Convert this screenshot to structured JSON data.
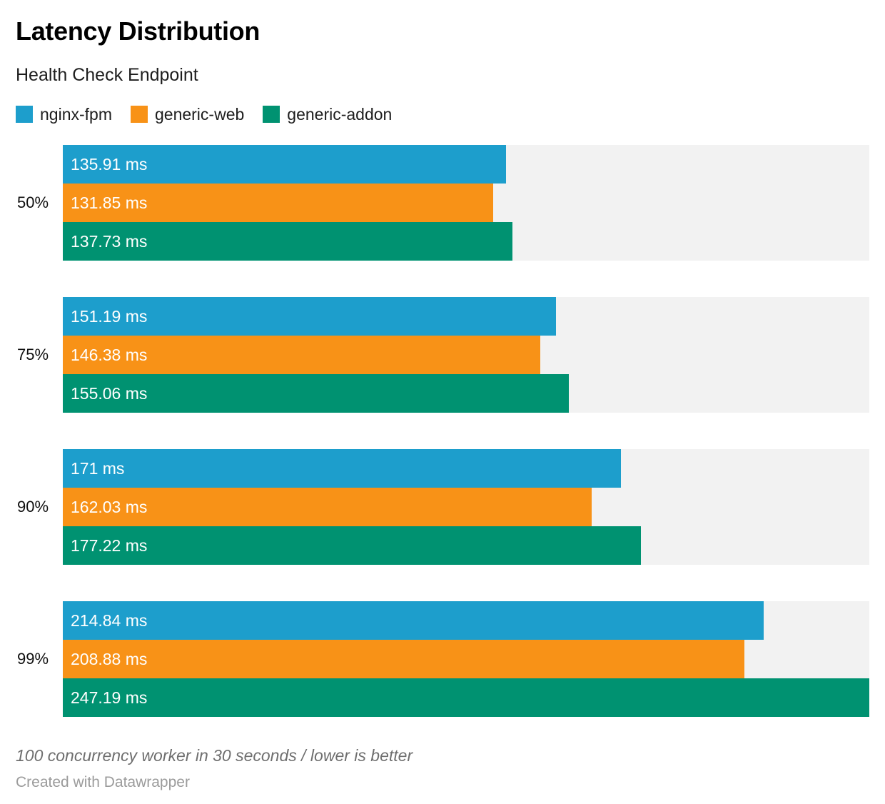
{
  "footer": {
    "note": "100 concurrency worker in 30 seconds / lower is better",
    "credit": "Created with Datawrapper"
  },
  "chart_data": {
    "type": "bar",
    "orientation": "horizontal",
    "title": "Latency Distribution",
    "subtitle": "Health Check Endpoint",
    "xlabel": "",
    "ylabel": "",
    "unit": "ms",
    "grid": false,
    "legend_position": "top",
    "value_labels": "inside-start",
    "track_color": "#f2f2f2",
    "xlim": [
      0,
      247.19
    ],
    "categories": [
      "50%",
      "75%",
      "90%",
      "99%"
    ],
    "series": [
      {
        "name": "nginx-fpm",
        "color": "#1d9ecc",
        "values": [
          135.91,
          151.19,
          171,
          214.84
        ],
        "labels": [
          "135.91 ms",
          "151.19 ms",
          "171 ms",
          "214.84 ms"
        ]
      },
      {
        "name": "generic-web",
        "color": "#f89217",
        "values": [
          131.85,
          146.38,
          162.03,
          208.88
        ],
        "labels": [
          "131.85 ms",
          "146.38 ms",
          "162.03 ms",
          "208.88 ms"
        ]
      },
      {
        "name": "generic-addon",
        "color": "#009271",
        "values": [
          137.73,
          155.06,
          177.22,
          247.19
        ],
        "labels": [
          "137.73 ms",
          "155.06 ms",
          "177.22 ms",
          "247.19 ms"
        ]
      }
    ]
  }
}
